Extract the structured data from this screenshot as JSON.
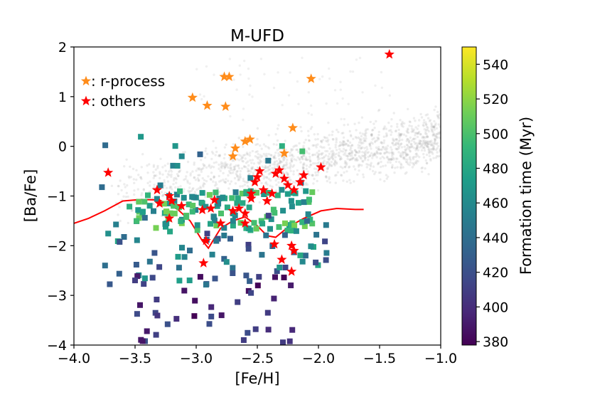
{
  "chart_data": {
    "type": "scatter",
    "title": "M-UFD",
    "xlabel": "[Fe/H]",
    "ylabel": "[Ba/Fe]",
    "xlim": [
      -4.0,
      -1.0
    ],
    "ylim": [
      -4,
      2
    ],
    "xticks": [
      "−4.0",
      "−3.5",
      "−3.0",
      "−2.5",
      "−2.0",
      "−1.5",
      "−1.0"
    ],
    "yticks": [
      "−4",
      "−3",
      "−2",
      "−1",
      "0",
      "1",
      "2"
    ],
    "colorbar": {
      "label": "Formation time (Myr)",
      "min": 378,
      "max": 550,
      "ticks": [
        "380",
        "400",
        "420",
        "440",
        "460",
        "480",
        "500",
        "520",
        "540"
      ],
      "colormap": [
        "#440154",
        "#482878",
        "#3e4a89",
        "#31688e",
        "#26828e",
        "#1f9e89",
        "#35b779",
        "#6ece58",
        "#b5de2b",
        "#fde725"
      ]
    },
    "legend": [
      {
        "label": ": r-process",
        "color": "#ff8c1a"
      },
      {
        "label": ": others",
        "color": "#ff0000"
      }
    ],
    "r_process_stars": [
      [
        -2.77,
        1.4
      ],
      [
        -2.73,
        1.4
      ],
      [
        -2.06,
        1.36
      ],
      [
        -3.03,
        0.98
      ],
      [
        -2.91,
        0.82
      ],
      [
        -2.76,
        0.8
      ],
      [
        -2.21,
        0.37
      ],
      [
        -2.56,
        0.14
      ],
      [
        -2.6,
        0.1
      ],
      [
        -2.68,
        -0.04
      ],
      [
        -2.7,
        -0.2
      ],
      [
        -2.28,
        -0.14
      ]
    ],
    "other_stars": [
      [
        -1.42,
        1.85
      ],
      [
        -3.72,
        -0.53
      ],
      [
        -3.32,
        -0.88
      ],
      [
        -3.22,
        -1.0
      ],
      [
        -3.2,
        -1.1
      ],
      [
        -3.3,
        -1.15
      ],
      [
        -3.12,
        -1.2
      ],
      [
        -3.22,
        -1.45
      ],
      [
        -2.95,
        -1.28
      ],
      [
        -2.88,
        -1.25
      ],
      [
        -2.85,
        -1.08
      ],
      [
        -2.92,
        -1.9
      ],
      [
        -2.94,
        -2.35
      ],
      [
        -2.6,
        -1.35
      ],
      [
        -2.55,
        -1.05
      ],
      [
        -2.65,
        -1.25
      ],
      [
        -2.7,
        -1.3
      ],
      [
        -2.52,
        -0.72
      ],
      [
        -2.48,
        -0.5
      ],
      [
        -2.45,
        -0.88
      ],
      [
        -2.55,
        -0.95
      ],
      [
        -2.5,
        -0.62
      ],
      [
        -2.38,
        -0.95
      ],
      [
        -2.35,
        -0.55
      ],
      [
        -2.32,
        -0.48
      ],
      [
        -2.28,
        -0.65
      ],
      [
        -2.25,
        -0.78
      ],
      [
        -2.2,
        -0.88
      ],
      [
        -2.15,
        -0.72
      ],
      [
        -2.12,
        -0.58
      ],
      [
        -1.98,
        -0.42
      ],
      [
        -2.42,
        -1.1
      ],
      [
        -2.3,
        -2.28
      ],
      [
        -2.22,
        -2.0
      ],
      [
        -2.2,
        -2.1
      ],
      [
        -2.22,
        -2.52
      ],
      [
        -2.36,
        -1.97
      ],
      [
        -2.6,
        -1.55
      ],
      [
        -2.8,
        -1.55
      ]
    ],
    "mean_curve": [
      [
        -4.0,
        -1.55
      ],
      [
        -3.88,
        -1.45
      ],
      [
        -3.75,
        -1.3
      ],
      [
        -3.6,
        -1.1
      ],
      [
        -3.45,
        -1.07
      ],
      [
        -3.3,
        -1.08
      ],
      [
        -3.15,
        -1.27
      ],
      [
        -3.05,
        -1.5
      ],
      [
        -2.95,
        -1.9
      ],
      [
        -2.9,
        -2.05
      ],
      [
        -2.8,
        -1.65
      ],
      [
        -2.7,
        -1.5
      ],
      [
        -2.6,
        -1.42
      ],
      [
        -2.5,
        -1.6
      ],
      [
        -2.42,
        -1.8
      ],
      [
        -2.35,
        -1.83
      ],
      [
        -2.25,
        -1.63
      ],
      [
        -2.12,
        -1.45
      ],
      [
        -1.98,
        -1.3
      ],
      [
        -1.85,
        -1.25
      ],
      [
        -1.7,
        -1.27
      ],
      [
        -1.63,
        -1.27
      ]
    ]
  }
}
